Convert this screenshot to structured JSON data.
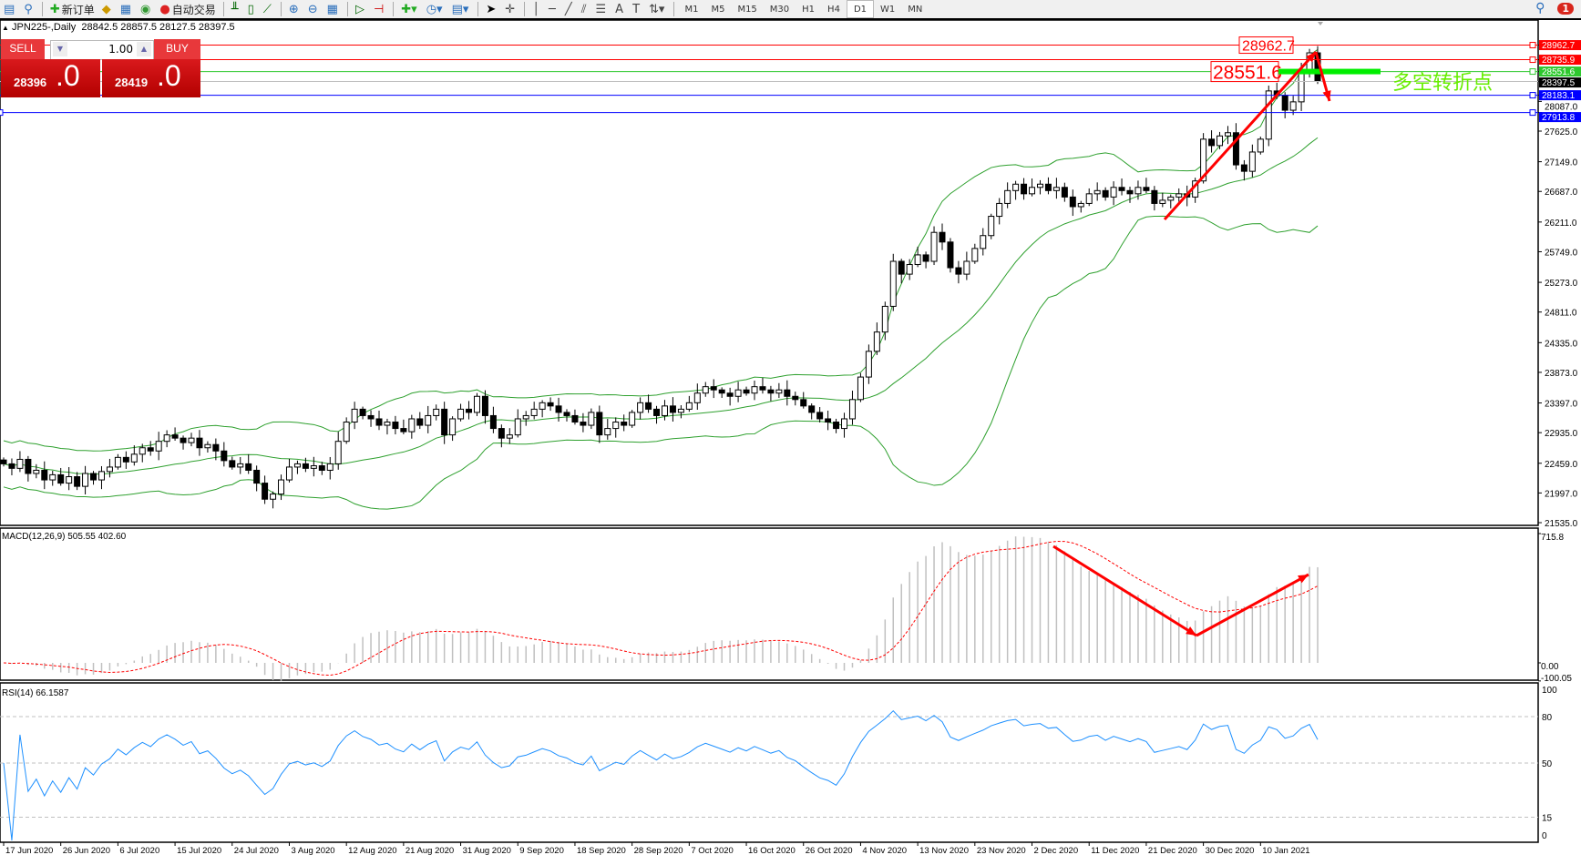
{
  "toolbar": {
    "new_order": "新订单",
    "auto_trading": "自动交易",
    "timeframes": [
      "M1",
      "M5",
      "M15",
      "M30",
      "H1",
      "H4",
      "D1",
      "W1",
      "MN"
    ],
    "active_timeframe": "D1",
    "notification_count": "1"
  },
  "chart": {
    "title": "JPN225-,Daily",
    "ohlc": "28842.5 28857.5 28127.5 28397.5"
  },
  "trade_panel": {
    "sell_label": "SELL",
    "buy_label": "BUY",
    "lot": "1.00",
    "sell_price_main": "28396",
    "sell_price_frac": ".0",
    "buy_price_main": "28419",
    "buy_price_frac": ".0"
  },
  "annotations": {
    "label_high": "28962.7",
    "label_pivot": "28551.6",
    "pivot_text": "多空转折点"
  },
  "colors": {
    "bull": "#ffffff",
    "bear": "#000000",
    "bands": "#2ea02e",
    "signal": "#ff0000",
    "hist": "#c0c0c0",
    "rsi": "#1e90ff",
    "arrow": "#ff0000",
    "pivot_text": "#66ee00"
  },
  "chart_data": {
    "type": "candlestick",
    "closes": [
      22450,
      22380,
      22520,
      22300,
      22350,
      22200,
      22280,
      22150,
      22250,
      22100,
      22300,
      22200,
      22330,
      22400,
      22550,
      22480,
      22600,
      22700,
      22650,
      22800,
      22900,
      22850,
      22780,
      22850,
      22700,
      22750,
      22650,
      22500,
      22400,
      22450,
      22350,
      22150,
      21900,
      21980,
      22200,
      22400,
      22450,
      22380,
      22420,
      22350,
      22450,
      22800,
      23100,
      23300,
      23200,
      23150,
      23050,
      23100,
      23000,
      22950,
      23150,
      23050,
      23200,
      23300,
      22900,
      23150,
      23300,
      23250,
      23500,
      23200,
      23000,
      22850,
      22900,
      23150,
      23200,
      23300,
      23400,
      23350,
      23250,
      23200,
      23100,
      23050,
      23250,
      22900,
      23000,
      23100,
      23050,
      23250,
      23400,
      23300,
      23200,
      23350,
      23250,
      23300,
      23400,
      23550,
      23650,
      23600,
      23550,
      23500,
      23600,
      23550,
      23650,
      23600,
      23550,
      23600,
      23500,
      23450,
      23350,
      23250,
      23150,
      23100,
      23000,
      23150,
      23450,
      23800,
      24200,
      24500,
      24900,
      25600,
      25400,
      25550,
      25700,
      25600,
      26050,
      25900,
      25500,
      25400,
      25600,
      25800,
      26000,
      26300,
      26500,
      26700,
      26800,
      26650,
      26750,
      26800,
      26700,
      26750,
      26600,
      26450,
      26500,
      26650,
      26700,
      26600,
      26750,
      26700,
      26650,
      26750,
      26700,
      26500,
      26550,
      26600,
      26650,
      26600,
      26850,
      27500,
      27400,
      27550,
      27600,
      27100,
      27000,
      27300,
      27500,
      28250,
      28180,
      27950,
      28080,
      28550,
      28842.5,
      28397.5
    ],
    "price_ticks": [
      "27625.0",
      "27149.0",
      "26687.0",
      "26211.0",
      "25749.0",
      "25273.0",
      "24811.0",
      "24335.0",
      "23873.0",
      "23397.0",
      "22935.0",
      "22459.0",
      "21997.0",
      "21535.0",
      "28087.0"
    ],
    "price_lines": [
      {
        "price": "28962.7",
        "color": "#ff0000"
      },
      {
        "price": "28735.9",
        "color": "#ff0000"
      },
      {
        "price": "28551.6",
        "color": "#2ec82e"
      },
      {
        "price": "28397.5",
        "color": "#000000"
      },
      {
        "price": "28183.1",
        "color": "#0000ff"
      },
      {
        "price": "27913.8",
        "color": "#0000ff"
      }
    ],
    "date_labels": [
      "17 Jun 2020",
      "26 Jun 2020",
      "6 Jul 2020",
      "15 Jul 2020",
      "24 Jul 2020",
      "3 Aug 2020",
      "12 Aug 2020",
      "21 Aug 2020",
      "31 Aug 2020",
      "9 Sep 2020",
      "18 Sep 2020",
      "28 Sep 2020",
      "7 Oct 2020",
      "16 Oct 2020",
      "26 Oct 2020",
      "4 Nov 2020",
      "13 Nov 2020",
      "23 Nov 2020",
      "2 Dec 2020",
      "11 Dec 2020",
      "21 Dec 2020",
      "30 Dec 2020",
      "10 Jan 2021"
    ],
    "bollinger": {
      "period": 20,
      "deviation": 2
    },
    "macd": {
      "label": "MACD(12,26,9) 505.55 402.60",
      "ticks": [
        "715.8",
        "0.00",
        "-100.05"
      ]
    },
    "rsi": {
      "label": "RSI(14) 66.1587",
      "ticks": [
        "100",
        "80",
        "50",
        "15",
        "0"
      ],
      "levels": [
        80,
        50,
        15
      ]
    }
  }
}
